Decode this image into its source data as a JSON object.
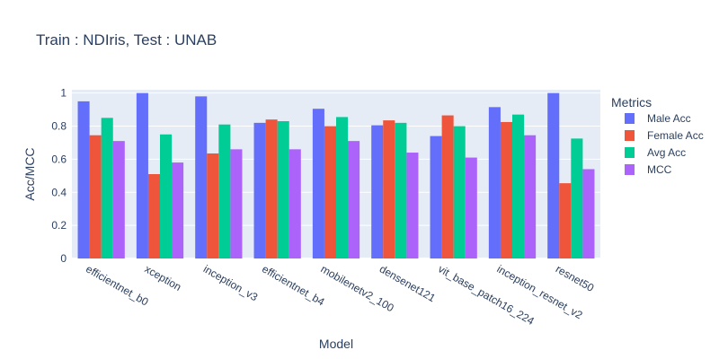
{
  "chart_data": {
    "type": "bar",
    "title": "Train : NDIris, Test : UNAB",
    "xlabel": "Model",
    "ylabel": "Acc/MCC",
    "ylim": [
      0,
      1.02
    ],
    "yticks": [
      0,
      0.2,
      0.4,
      0.6,
      0.8,
      1
    ],
    "ytick_labels": [
      "0",
      "0.2",
      "0.4",
      "0.6",
      "0.8",
      "1"
    ],
    "grid": true,
    "legend_title": "Metrics",
    "legend_position": "right",
    "categories": [
      "efficientnet_b0",
      "xception",
      "inception_v3",
      "efficientnet_b4",
      "mobilenetv2_100",
      "densenet121",
      "vit_base_patch16_224",
      "inception_resnet_v2",
      "resnet50"
    ],
    "series": [
      {
        "name": "Male Acc",
        "color": "#636efa",
        "values": [
          0.95,
          1.0,
          0.98,
          0.82,
          0.905,
          0.805,
          0.74,
          0.915,
          1.0
        ]
      },
      {
        "name": "Female Acc",
        "color": "#ef553b",
        "values": [
          0.745,
          0.51,
          0.635,
          0.84,
          0.8,
          0.835,
          0.865,
          0.825,
          0.455
        ]
      },
      {
        "name": "Avg Acc",
        "color": "#00cc96",
        "values": [
          0.85,
          0.75,
          0.81,
          0.83,
          0.855,
          0.82,
          0.8,
          0.87,
          0.725
        ]
      },
      {
        "name": "MCC",
        "color": "#ab63fa",
        "values": [
          0.71,
          0.58,
          0.66,
          0.66,
          0.71,
          0.64,
          0.61,
          0.745,
          0.54
        ]
      }
    ]
  }
}
